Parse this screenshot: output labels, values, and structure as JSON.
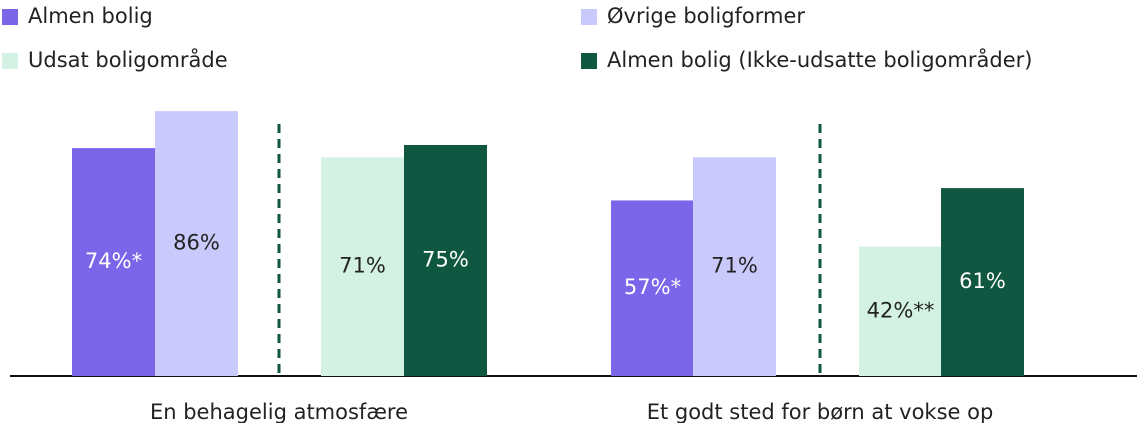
{
  "chart_data": {
    "type": "bar",
    "categories": [
      "En behagelig atmosfære",
      "Et godt sted for børn at vokse op"
    ],
    "series": [
      {
        "name": "Almen bolig",
        "color": "#7b66ea",
        "values": [
          74,
          57
        ],
        "value_labels": [
          "74%*",
          "57%*"
        ]
      },
      {
        "name": "Øvrige boligformer",
        "color": "#cac9fb",
        "values": [
          86,
          71
        ],
        "value_labels": [
          "86%",
          "71%"
        ]
      },
      {
        "name": "Udsat boligområde",
        "color": "#d3f2e4",
        "values": [
          71,
          42
        ],
        "value_labels": [
          "71%",
          "42%**"
        ]
      },
      {
        "name": "Almen bolig (Ikke-udsatte boligområder)",
        "color": "#0f5741",
        "values": [
          75,
          61
        ],
        "value_labels": [
          "75%",
          "61%"
        ]
      }
    ],
    "ylim": [
      0,
      100
    ]
  }
}
